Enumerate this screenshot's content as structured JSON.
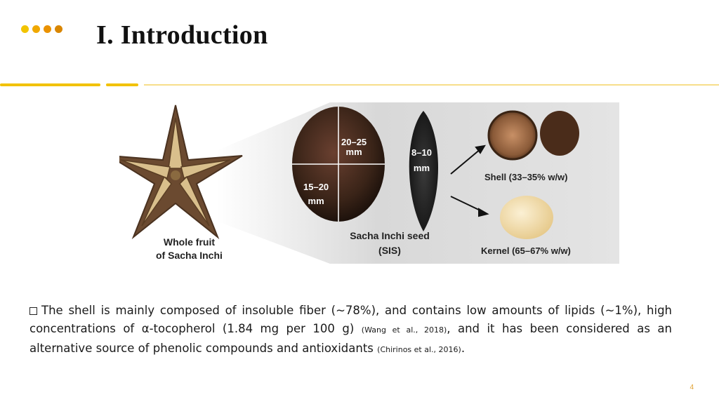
{
  "header": {
    "title": "I. Introduction",
    "dot_colors": [
      "#f2c400",
      "#f0a800",
      "#ea9200",
      "#d98600"
    ],
    "rule_color": "#f2c200"
  },
  "figure": {
    "whole_fruit_label": [
      "Whole fruit",
      "of Sacha Inchi"
    ],
    "length_label": [
      "20–25",
      "mm"
    ],
    "width_label": [
      "15–20",
      "mm"
    ],
    "thickness_label": [
      "8–10",
      "mm"
    ],
    "seed_label": [
      "Sacha Inchi seed",
      "(SIS)"
    ],
    "shell_label": "Shell (33–35% w/w)",
    "kernel_label": "Kernel (65–67% w/w)"
  },
  "body": {
    "sentence_1": "The shell is mainly composed of insoluble fiber (~78%), and contains low amounts of lipids (~1%), high concentrations of α-tocopherol (1.84 mg per 100 g)",
    "citation_1": "(Wang et al., 2018)",
    "sentence_2": ", and it has been considered as an alternative source of phenolic compounds and antioxidants",
    "citation_2": "(Chirinos et al., 2016)",
    "end": "."
  },
  "footer": {
    "page_number": "4"
  }
}
